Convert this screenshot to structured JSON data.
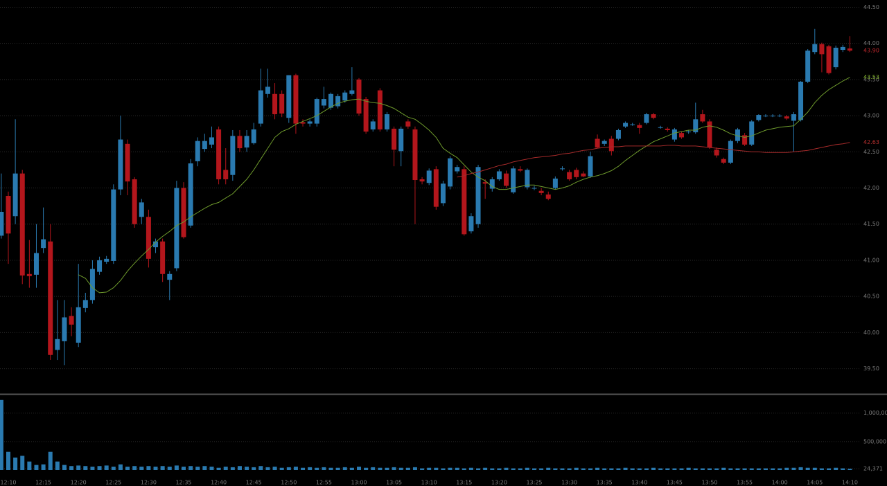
{
  "chart_data": {
    "type": "candlestick",
    "categories": [
      null,
      "12:10",
      null,
      null,
      null,
      null,
      "12:15",
      null,
      null,
      null,
      null,
      "12:20",
      null,
      null,
      null,
      null,
      "12:25",
      null,
      null,
      null,
      null,
      "12:30",
      null,
      null,
      null,
      null,
      "12:35",
      null,
      null,
      null,
      null,
      "12:40",
      null,
      null,
      null,
      null,
      "12:45",
      null,
      null,
      null,
      null,
      "12:50",
      null,
      null,
      null,
      null,
      "12:55",
      null,
      null,
      null,
      null,
      "13:00",
      null,
      null,
      null,
      null,
      "13:05",
      null,
      null,
      null,
      null,
      "13:10",
      null,
      null,
      null,
      null,
      "13:15",
      null,
      null,
      null,
      null,
      "13:20",
      null,
      null,
      null,
      null,
      "13:25",
      null,
      null,
      null,
      null,
      "13:30",
      null,
      null,
      null,
      null,
      "13:35",
      null,
      null,
      null,
      null,
      "13:40",
      null,
      null,
      null,
      null,
      "13:45",
      null,
      null,
      null,
      null,
      "13:50",
      null,
      null,
      null,
      null,
      "13:55",
      null,
      null,
      null,
      null,
      "14:00",
      null,
      null,
      null,
      null,
      "14:05",
      null,
      null,
      null,
      null,
      "14:10"
    ],
    "open": [
      41.34,
      41.89,
      41.61,
      42.2,
      40.81,
      40.8,
      41.17,
      41.26,
      39.76,
      39.88,
      40.23,
      39.86,
      40.34,
      40.45,
      40.84,
      40.98,
      40.99,
      41.98,
      42.61,
      42.12,
      41.6,
      41.6,
      41.18,
      41.26,
      40.73,
      40.89,
      42.0,
      41.48,
      42.37,
      42.54,
      42.6,
      42.81,
      42.25,
      42.18,
      42.72,
      42.56,
      42.62,
      42.89,
      43.3,
      43.3,
      43.3,
      42.97,
      43.56,
      42.91,
      42.89,
      42.89,
      43.14,
      43.11,
      43.13,
      43.21,
      43.3,
      43.5,
      43.23,
      42.81,
      43.35,
      42.81,
      42.82,
      42.51,
      42.92,
      42.81,
      42.12,
      42.07,
      42.26,
      41.79,
      42.02,
      42.23,
      42.26,
      41.4,
      41.5,
      42.08,
      41.99,
      42.12,
      42.2,
      41.94,
      42.26,
      42.01,
      42.0,
      41.96,
      41.91,
      42.0,
      42.26,
      42.22,
      42.25,
      42.2,
      42.16,
      42.68,
      42.61,
      42.68,
      42.68,
      42.85,
      42.88,
      42.87,
      42.9,
      43.02,
      42.84,
      42.82,
      42.67,
      42.76,
      42.77,
      42.77,
      43.02,
      42.92,
      42.53,
      42.4,
      42.35,
      42.65,
      42.73,
      42.6,
      42.94,
      43.0,
      43.0,
      43.0,
      42.99,
      42.93,
      42.94,
      43.47,
      43.88,
      43.99,
      43.96,
      43.67,
      43.91,
      43.93
    ],
    "high": [
      42.2,
      41.95,
      42.95,
      42.25,
      41.28,
      41.5,
      41.73,
      41.5,
      40.45,
      40.45,
      40.35,
      40.95,
      40.55,
      41.0,
      41.05,
      41.06,
      42.05,
      43.0,
      42.67,
      42.15,
      41.85,
      41.7,
      41.3,
      41.3,
      40.85,
      42.1,
      42.08,
      42.4,
      42.7,
      42.75,
      42.85,
      42.85,
      42.55,
      42.8,
      42.8,
      42.8,
      42.9,
      43.65,
      43.65,
      43.45,
      43.35,
      43.56,
      43.58,
      42.95,
      42.95,
      43.25,
      43.4,
      43.32,
      43.3,
      43.35,
      43.67,
      43.52,
      43.26,
      42.95,
      43.38,
      43.05,
      42.85,
      42.85,
      42.95,
      42.85,
      42.15,
      42.27,
      42.3,
      42.1,
      42.44,
      42.32,
      42.3,
      41.65,
      42.32,
      42.12,
      42.15,
      42.26,
      42.24,
      42.3,
      42.3,
      42.27,
      42.03,
      42.0,
      41.95,
      42.16,
      42.3,
      42.25,
      42.28,
      42.23,
      42.5,
      42.74,
      42.67,
      42.72,
      42.82,
      42.92,
      42.9,
      42.9,
      43.04,
      43.04,
      42.86,
      42.84,
      42.83,
      42.78,
      42.8,
      43.18,
      43.08,
      42.95,
      42.56,
      42.42,
      42.67,
      42.83,
      42.76,
      42.94,
      43.02,
      43.02,
      43.02,
      43.02,
      43.01,
      43.05,
      43.48,
      43.92,
      44.2,
      44.01,
      43.98,
      43.97,
      43.98,
      44.1
    ],
    "low": [
      41.3,
      40.95,
      41.5,
      40.67,
      40.62,
      40.62,
      41.1,
      39.62,
      39.62,
      39.55,
      39.95,
      39.8,
      40.28,
      40.4,
      40.8,
      40.95,
      40.95,
      41.9,
      41.9,
      41.45,
      41.5,
      40.9,
      41.1,
      40.7,
      40.45,
      40.85,
      41.3,
      41.45,
      42.3,
      42.5,
      42.55,
      42.05,
      42.05,
      42.1,
      42.5,
      42.5,
      42.6,
      42.85,
      43.25,
      42.95,
      42.98,
      42.9,
      42.75,
      42.85,
      42.85,
      42.85,
      43.1,
      43.08,
      43.1,
      43.18,
      43.28,
      43.0,
      42.75,
      42.78,
      42.78,
      42.78,
      42.3,
      42.3,
      42.82,
      41.5,
      42.05,
      42.04,
      41.7,
      41.75,
      41.98,
      42.2,
      41.34,
      41.37,
      41.45,
      41.85,
      41.95,
      42.1,
      42.0,
      41.92,
      42.22,
      41.98,
      41.97,
      41.9,
      41.83,
      41.98,
      42.24,
      42.1,
      42.12,
      42.15,
      42.14,
      42.55,
      42.58,
      42.45,
      42.66,
      42.83,
      42.86,
      42.75,
      42.88,
      42.95,
      42.82,
      42.78,
      42.64,
      42.68,
      42.75,
      42.75,
      42.9,
      42.54,
      42.42,
      42.33,
      42.33,
      42.62,
      42.58,
      42.58,
      42.92,
      42.98,
      42.98,
      42.98,
      42.94,
      42.5,
      42.92,
      43.45,
      43.85,
      43.6,
      43.57,
      43.64,
      43.88,
      43.88
    ],
    "close": [
      41.67,
      41.37,
      42.2,
      40.79,
      40.78,
      41.1,
      41.29,
      39.69,
      39.91,
      40.21,
      40.11,
      40.35,
      40.45,
      40.88,
      41.0,
      41.02,
      41.98,
      42.67,
      42.09,
      41.5,
      41.8,
      41.02,
      41.26,
      40.81,
      40.81,
      42.0,
      41.32,
      42.34,
      42.65,
      42.65,
      42.7,
      42.12,
      42.12,
      42.72,
      42.55,
      42.72,
      42.81,
      43.35,
      43.4,
      43.02,
      43.03,
      43.56,
      42.89,
      42.89,
      42.92,
      43.23,
      43.23,
      43.3,
      43.27,
      43.32,
      43.35,
      43.03,
      42.78,
      42.92,
      42.81,
      43.02,
      42.53,
      42.82,
      42.85,
      42.11,
      42.09,
      42.24,
      41.74,
      42.06,
      42.41,
      42.29,
      41.36,
      41.61,
      42.29,
      42.06,
      42.12,
      42.23,
      42.03,
      42.27,
      42.24,
      42.25,
      42.0,
      41.93,
      41.85,
      42.13,
      42.27,
      42.12,
      42.15,
      42.16,
      42.44,
      42.56,
      42.65,
      42.51,
      42.8,
      42.9,
      42.88,
      42.83,
      43.02,
      42.97,
      42.84,
      42.8,
      42.81,
      42.7,
      42.78,
      42.95,
      42.92,
      42.56,
      42.45,
      42.35,
      42.65,
      42.81,
      42.6,
      42.92,
      43.01,
      43.0,
      43.0,
      43.0,
      42.96,
      43.02,
      43.47,
      43.9,
      43.99,
      43.85,
      43.59,
      43.94,
      43.95,
      43.9
    ],
    "up_color": "#2a7ab0",
    "down_color": "#b3161c",
    "lines": [
      {
        "color": "#6e9a2c",
        "values": [
          null,
          null,
          null,
          null,
          null,
          null,
          null,
          null,
          null,
          null,
          null,
          40.8,
          40.75,
          40.62,
          40.55,
          40.56,
          40.62,
          40.72,
          40.85,
          40.96,
          41.06,
          41.15,
          41.25,
          41.33,
          41.4,
          41.48,
          41.53,
          41.6,
          41.66,
          41.72,
          41.77,
          41.8,
          41.86,
          41.92,
          42.02,
          42.12,
          42.25,
          42.4,
          42.55,
          42.7,
          42.78,
          42.82,
          42.88,
          42.92,
          42.96,
          43.0,
          43.06,
          43.12,
          43.17,
          43.2,
          43.22,
          43.23,
          43.2,
          43.18,
          43.17,
          43.14,
          43.1,
          43.04,
          42.98,
          42.95,
          42.88,
          42.8,
          42.7,
          42.55,
          42.48,
          42.42,
          42.32,
          42.22,
          42.15,
          42.1,
          42.02,
          41.98,
          41.98,
          42.0,
          42.02,
          42.04,
          42.04,
          42.02,
          42.0,
          41.98,
          42.0,
          42.03,
          42.08,
          42.12,
          42.15,
          42.17,
          42.2,
          42.24,
          42.3,
          42.38,
          42.45,
          42.52,
          42.58,
          42.64,
          42.68,
          42.72,
          42.76,
          42.78,
          42.8,
          42.8,
          42.84,
          42.86,
          42.84,
          42.8,
          42.75,
          42.72,
          42.7,
          42.72,
          42.76,
          42.8,
          42.82,
          42.84,
          42.85,
          42.86,
          42.95,
          43.05,
          43.18,
          43.28,
          43.36,
          43.42,
          43.48,
          43.53
        ]
      },
      {
        "color": "#a52a2a",
        "values": [
          null,
          null,
          null,
          null,
          null,
          null,
          null,
          null,
          null,
          null,
          null,
          null,
          null,
          null,
          null,
          null,
          null,
          null,
          null,
          null,
          null,
          null,
          null,
          null,
          null,
          null,
          null,
          null,
          null,
          null,
          null,
          null,
          null,
          null,
          null,
          null,
          null,
          null,
          null,
          null,
          null,
          null,
          null,
          null,
          null,
          null,
          null,
          null,
          null,
          null,
          null,
          null,
          null,
          null,
          null,
          null,
          null,
          null,
          null,
          null,
          null,
          null,
          null,
          null,
          null,
          42.15,
          42.17,
          42.2,
          42.22,
          42.25,
          42.28,
          42.31,
          42.33,
          42.36,
          42.38,
          42.4,
          42.42,
          42.43,
          42.44,
          42.45,
          42.47,
          42.48,
          42.5,
          42.52,
          42.53,
          42.55,
          42.56,
          42.57,
          42.57,
          42.58,
          42.58,
          42.58,
          42.58,
          42.58,
          42.58,
          42.59,
          42.59,
          42.58,
          42.58,
          42.58,
          42.57,
          42.56,
          42.55,
          42.54,
          42.53,
          42.52,
          42.51,
          42.5,
          42.5,
          42.49,
          42.49,
          42.49,
          42.49,
          42.5,
          42.51,
          42.52,
          42.54,
          42.56,
          42.58,
          42.6,
          42.61,
          42.63
        ]
      }
    ],
    "price_labels": [
      {
        "value": 43.9,
        "label": "43.90",
        "color": "#c0282d"
      },
      {
        "value": 43.53,
        "label": "43.53",
        "color": "#7fae2e"
      },
      {
        "value": 42.63,
        "label": "42.63",
        "color": "#b8302f"
      }
    ],
    "ylim": [
      39.18,
      44.6
    ],
    "yticks": [
      {
        "value": 39.5,
        "label": "39.50"
      },
      {
        "value": 40,
        "label": "40.00"
      },
      {
        "value": 40.5,
        "label": "40.50"
      },
      {
        "value": 41,
        "label": "41.00"
      },
      {
        "value": 41.5,
        "label": "41.50"
      },
      {
        "value": 42,
        "label": "42.00"
      },
      {
        "value": 42.5,
        "label": "42.50"
      },
      {
        "value": 43,
        "label": "43.00"
      },
      {
        "value": 43.5,
        "label": "43.50"
      },
      {
        "value": 44,
        "label": "44.00"
      },
      {
        "value": 44.5,
        "label": "44.50"
      }
    ],
    "volume": [
      1230000,
      320000,
      220000,
      250000,
      150000,
      90000,
      100000,
      320000,
      150000,
      90000,
      70000,
      80000,
      70000,
      60000,
      70000,
      80000,
      60000,
      100000,
      60000,
      70000,
      60000,
      70000,
      60000,
      70000,
      60000,
      80000,
      60000,
      70000,
      60000,
      70000,
      60000,
      40000,
      60000,
      50000,
      70000,
      60000,
      50000,
      70000,
      50000,
      60000,
      40000,
      50000,
      60000,
      40000,
      50000,
      40000,
      50000,
      40000,
      40000,
      50000,
      40000,
      60000,
      40000,
      50000,
      40000,
      40000,
      50000,
      40000,
      40000,
      50000,
      30000,
      40000,
      40000,
      30000,
      40000,
      40000,
      30000,
      40000,
      30000,
      40000,
      30000,
      30000,
      40000,
      30000,
      30000,
      40000,
      30000,
      30000,
      40000,
      30000,
      30000,
      30000,
      40000,
      30000,
      30000,
      40000,
      30000,
      30000,
      30000,
      40000,
      30000,
      30000,
      30000,
      40000,
      30000,
      30000,
      30000,
      30000,
      40000,
      30000,
      30000,
      30000,
      30000,
      40000,
      30000,
      30000,
      30000,
      30000,
      30000,
      30000,
      30000,
      30000,
      40000,
      40000,
      50000,
      40000,
      40000,
      30000,
      30000,
      40000,
      30000,
      24371
    ],
    "volume_color": "#2a7ab0",
    "y2lim": [
      0,
      1300000
    ],
    "y2ticks": [
      {
        "value": 1000000,
        "label": "1,000,000"
      },
      {
        "value": 500000,
        "label": "500,000"
      },
      {
        "value": 24371,
        "label": "24,371"
      }
    ],
    "grid": true
  }
}
